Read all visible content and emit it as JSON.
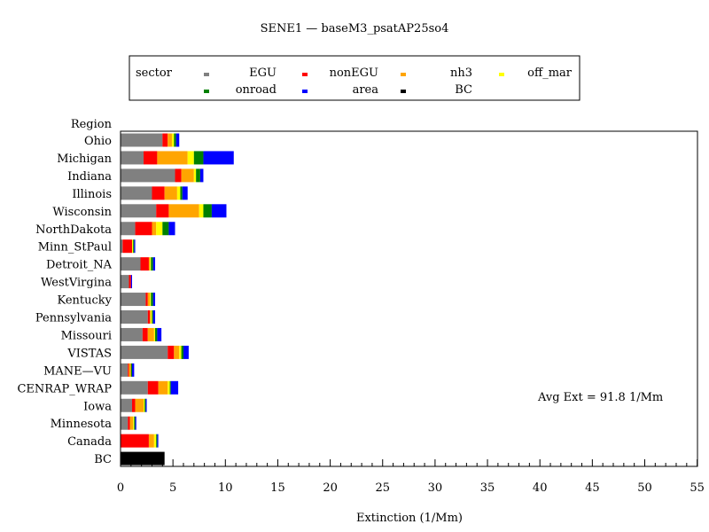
{
  "chart_data": {
    "type": "bar",
    "orientation": "horizontal",
    "stacked": true,
    "title": "SENE1 — baseM3_psatAP25so4",
    "xlabel": "Extinction  (1/Mm)",
    "ylabel": "Region",
    "xlim": [
      0,
      55
    ],
    "x_ticks": [
      "0",
      "5",
      "10",
      "15",
      "20",
      "25",
      "30",
      "35",
      "40",
      "45",
      "50",
      "55"
    ],
    "legend": {
      "title": "sector",
      "placement": "top-center"
    },
    "annotation": "Avg Ext =  91.8 1/Mm",
    "categories": [
      "Ohio",
      "Michigan",
      "Indiana",
      "Illinois",
      "Wisconsin",
      "NorthDakota",
      "Minn_StPaul",
      "Detroit_NA",
      "WestVirgina",
      "Kentucky",
      "Pennsylvania",
      "Missouri",
      "VISTAS",
      "MANE—VU",
      "CENRAP_WRAP",
      "Iowa",
      "Minnesota",
      "Canada",
      "BC"
    ],
    "series": [
      {
        "name": "EGU",
        "color": "#808080",
        "values": [
          4.0,
          2.2,
          5.2,
          3.0,
          3.4,
          1.4,
          0.2,
          1.9,
          0.8,
          2.4,
          2.6,
          2.1,
          4.5,
          0.7,
          2.6,
          1.1,
          0.7,
          0.0,
          0.0
        ]
      },
      {
        "name": "nonEGU",
        "color": "#ff0000",
        "values": [
          0.5,
          1.3,
          0.6,
          1.2,
          1.2,
          1.6,
          0.9,
          0.8,
          0.2,
          0.2,
          0.2,
          0.5,
          0.6,
          0.1,
          1.0,
          0.3,
          0.2,
          2.7,
          0.0
        ]
      },
      {
        "name": "nh3",
        "color": "#ffa500",
        "values": [
          0.4,
          2.9,
          1.2,
          1.2,
          2.9,
          0.4,
          0.0,
          0.1,
          0.0,
          0.2,
          0.1,
          0.6,
          0.5,
          0.2,
          0.9,
          0.8,
          0.3,
          0.5,
          0.0
        ]
      },
      {
        "name": "off_mar",
        "color": "#ffff00",
        "values": [
          0.2,
          0.6,
          0.2,
          0.3,
          0.4,
          0.6,
          0.1,
          0.1,
          0.0,
          0.1,
          0.1,
          0.1,
          0.2,
          0.0,
          0.2,
          0.1,
          0.1,
          0.2,
          0.0
        ]
      },
      {
        "name": "onroad",
        "color": "#008000",
        "values": [
          0.2,
          0.9,
          0.4,
          0.2,
          0.8,
          0.6,
          0.1,
          0.2,
          0.0,
          0.2,
          0.1,
          0.2,
          0.2,
          0.1,
          0.1,
          0.1,
          0.1,
          0.1,
          0.0
        ]
      },
      {
        "name": "area",
        "color": "#0000ff",
        "values": [
          0.3,
          2.9,
          0.3,
          0.5,
          1.4,
          0.6,
          0.1,
          0.2,
          0.1,
          0.2,
          0.2,
          0.4,
          0.5,
          0.2,
          0.7,
          0.1,
          0.1,
          0.1,
          0.0
        ]
      },
      {
        "name": "BC",
        "color": "#000000",
        "values": [
          0.0,
          0.0,
          0.0,
          0.0,
          0.0,
          0.0,
          0.0,
          0.0,
          0.0,
          0.0,
          0.0,
          0.0,
          0.0,
          0.0,
          0.0,
          0.0,
          0.0,
          0.0,
          4.2
        ]
      }
    ]
  }
}
